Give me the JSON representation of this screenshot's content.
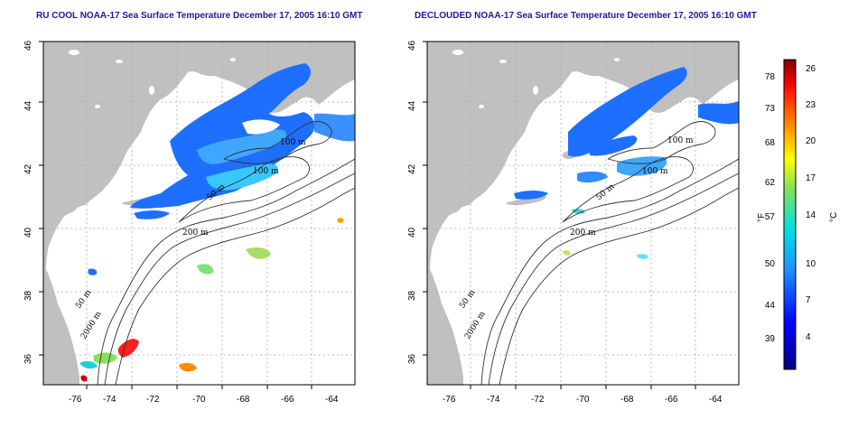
{
  "panels": [
    {
      "title": "RU COOL NOAA-17 Sea Surface Temperature December 17, 2005 16:10 GMT"
    },
    {
      "title": "DECLOUDED NOAA-17 Sea Surface Temperature December 17, 2005 16:10 GMT"
    }
  ],
  "axes": {
    "lon_ticks": [
      "-76",
      "-74",
      "-72",
      "-70",
      "-68",
      "-66",
      "-64"
    ],
    "lat_ticks": [
      "46",
      "44",
      "42",
      "40",
      "38",
      "36"
    ]
  },
  "contour_labels": {
    "left": [
      "100 m",
      "100 m",
      "50 m",
      "200 m",
      "50 m",
      "2000 m"
    ],
    "right": [
      "100 m",
      "100 m",
      "50 m",
      "200 m",
      "50 m",
      "2000 m"
    ]
  },
  "colorbar": {
    "f_label": "°F",
    "c_label": "°C",
    "f_ticks": [
      "78",
      "73",
      "68",
      "62",
      "57",
      "50",
      "44",
      "39"
    ],
    "c_ticks": [
      "26",
      "23",
      "20",
      "17",
      "14",
      "10",
      "7",
      "4"
    ]
  },
  "colors": {
    "land": "#c0c0c0",
    "title": "#1a1aa0",
    "water": "#ffffff"
  }
}
